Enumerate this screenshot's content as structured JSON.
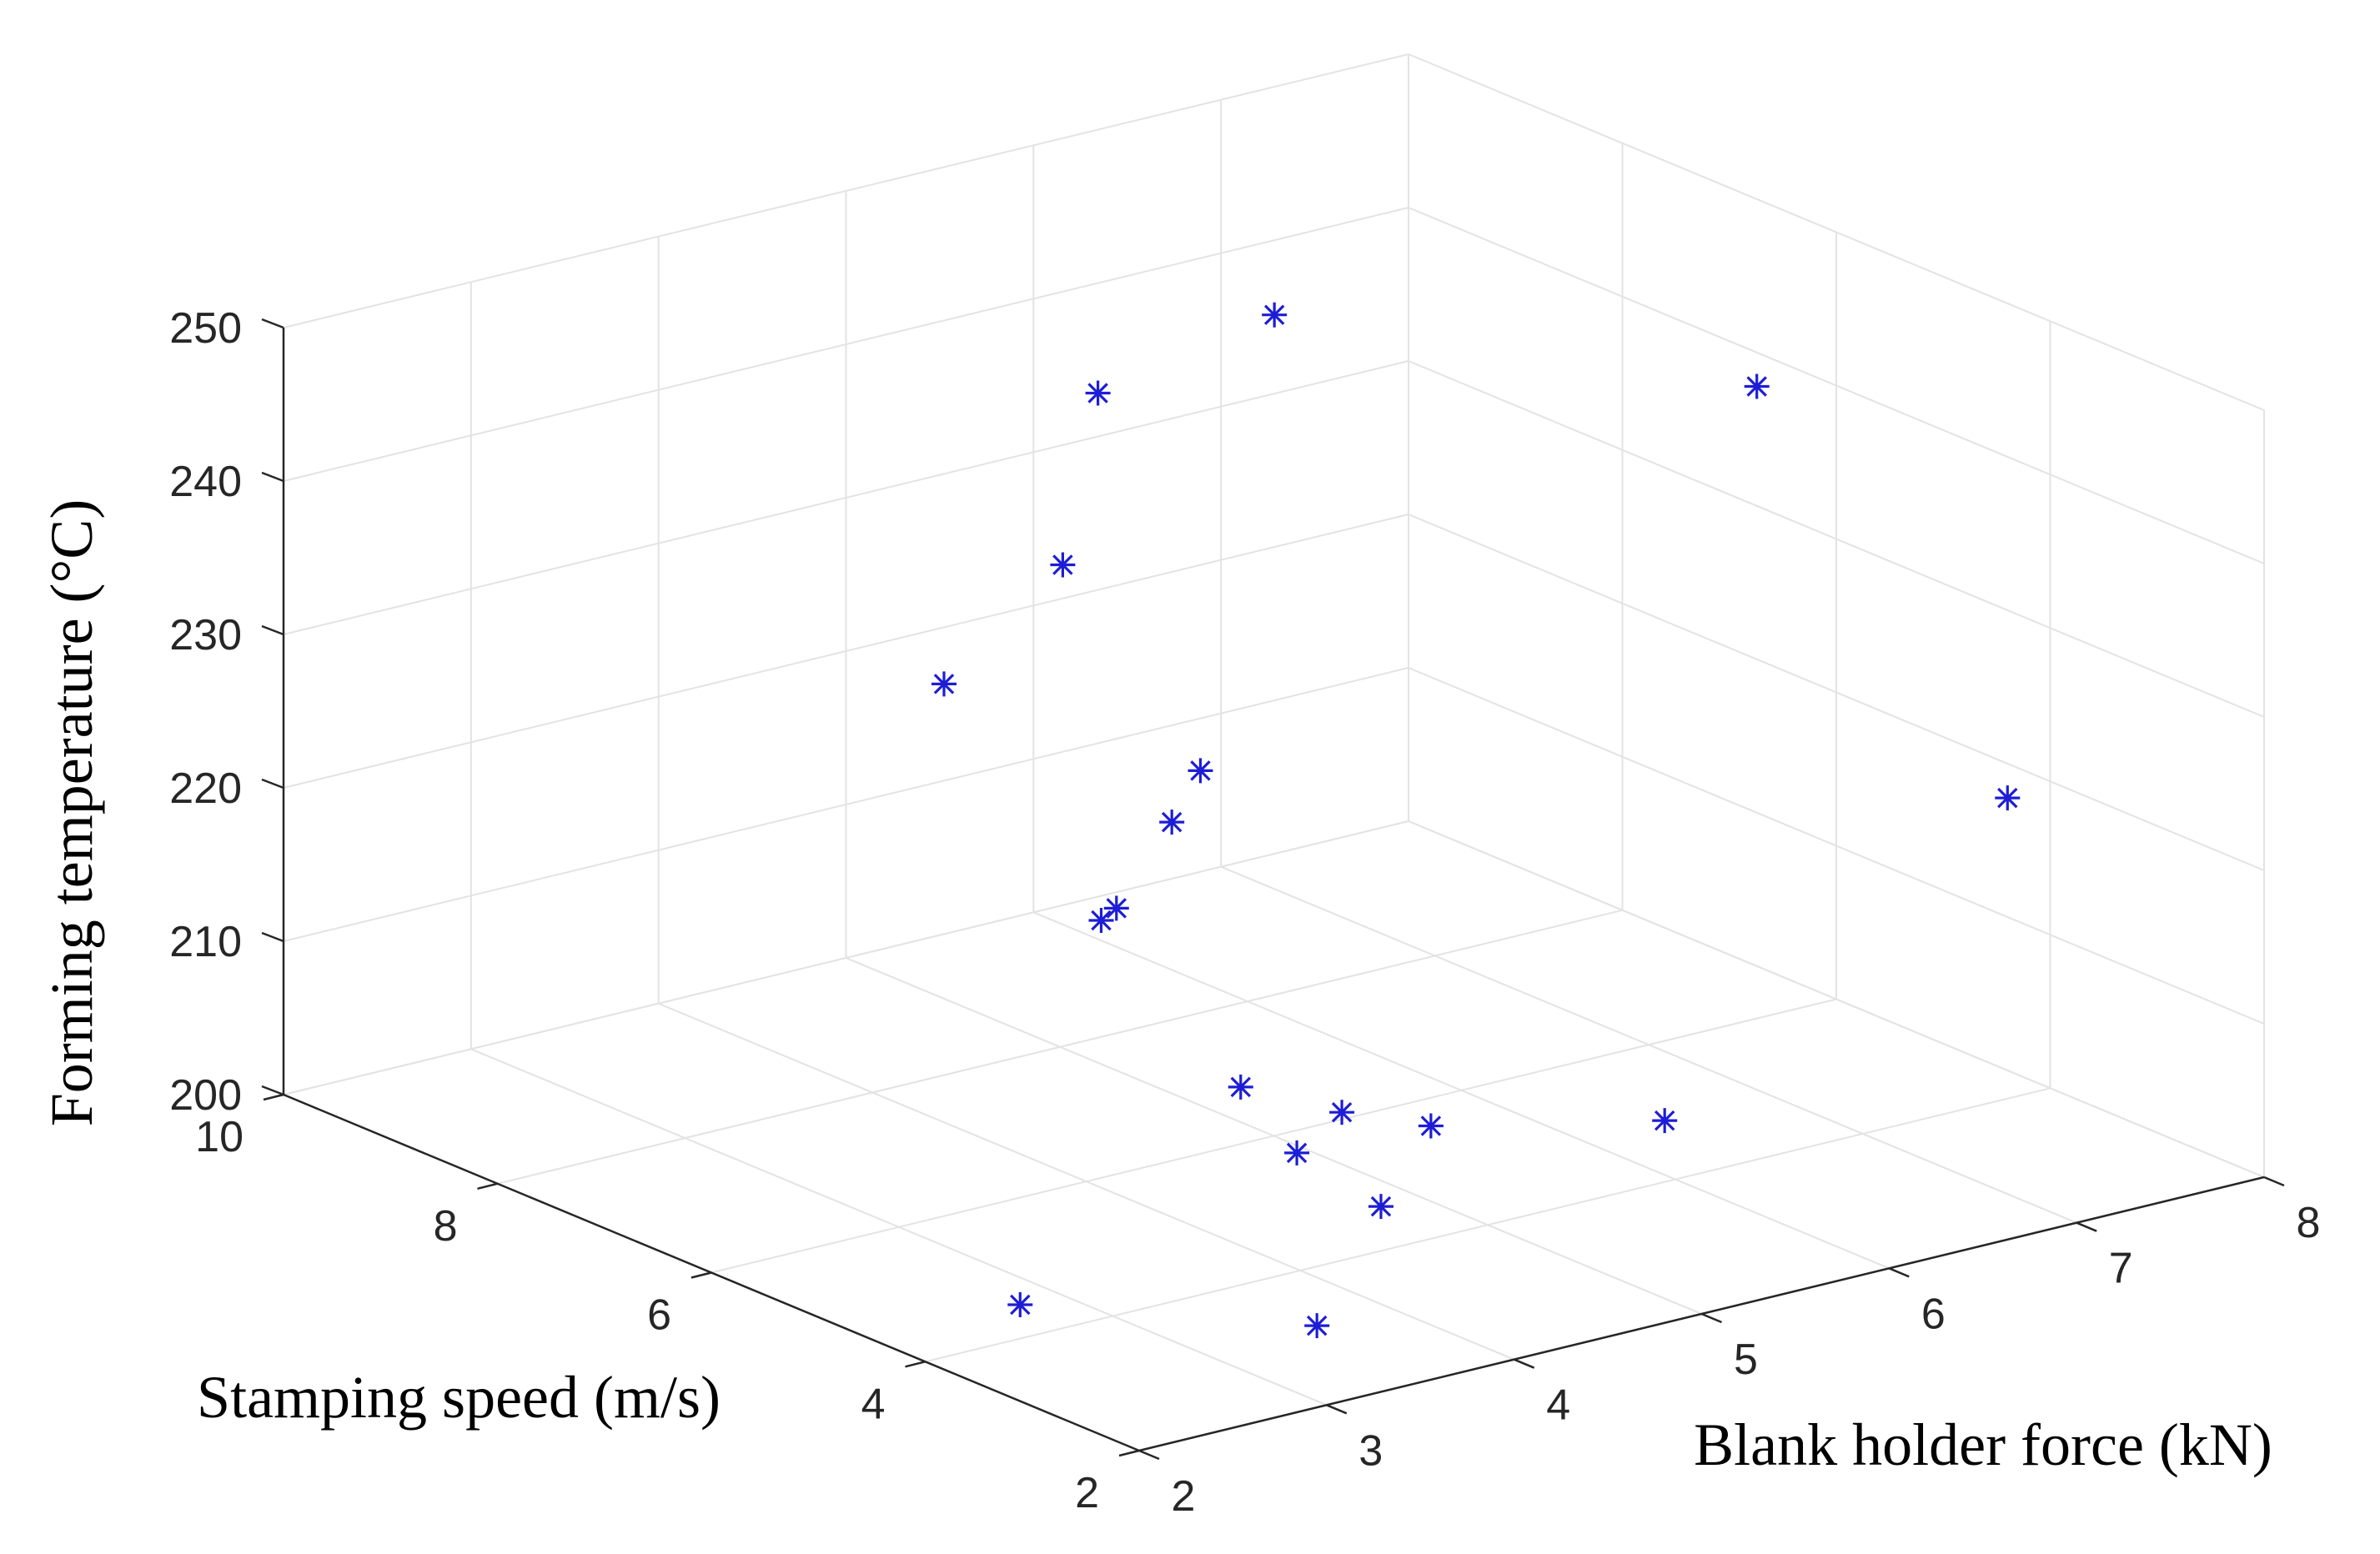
{
  "chart_data": {
    "type": "scatter",
    "xlabel": "Blank holder force (kN)",
    "ylabel": "Stamping speed (m/s)",
    "zlabel": "Forming temperature (°C)",
    "xlim": [
      2,
      8
    ],
    "ylim": [
      2,
      10
    ],
    "zlim": [
      200,
      250
    ],
    "x_ticks": [
      "2",
      "3",
      "4",
      "5",
      "6",
      "7",
      "8"
    ],
    "y_ticks": [
      "2",
      "4",
      "6",
      "8",
      "10"
    ],
    "z_ticks": [
      "200",
      "210",
      "220",
      "230",
      "240",
      "250"
    ],
    "grid": true,
    "marker": "asterisk",
    "marker_color": "#1d1dd6",
    "points": [
      {
        "x": 6.68,
        "y": 8.94,
        "z": 240
      },
      {
        "x": 5.95,
        "y": 9.31,
        "z": 236
      },
      {
        "x": 7.85,
        "y": 6.48,
        "z": 239
      },
      {
        "x": 2.83,
        "y": 5.28,
        "z": 238
      },
      {
        "x": 4.69,
        "y": 7.43,
        "z": 234
      },
      {
        "x": 3.72,
        "y": 4.71,
        "z": 228
      },
      {
        "x": 7.35,
        "y": 3.26,
        "z": 223
      },
      {
        "x": 3.68,
        "y": 5.3,
        "z": 220
      },
      {
        "x": 3.83,
        "y": 5.42,
        "z": 220
      },
      {
        "x": 5.35,
        "y": 7.3,
        "z": 219
      },
      {
        "x": 5.16,
        "y": 6.59,
        "z": 201
      },
      {
        "x": 5.61,
        "y": 5.6,
        "z": 200
      },
      {
        "x": 5.42,
        "y": 6.1,
        "z": 200
      },
      {
        "x": 4.79,
        "y": 4.63,
        "z": 200
      },
      {
        "x": 4.94,
        "y": 5.68,
        "z": 200
      },
      {
        "x": 6.44,
        "y": 4.87,
        "z": 200
      },
      {
        "x": 3.61,
        "y": 3.16,
        "z": 200
      },
      {
        "x": 2.78,
        "y": 4.48,
        "z": 200
      }
    ]
  }
}
